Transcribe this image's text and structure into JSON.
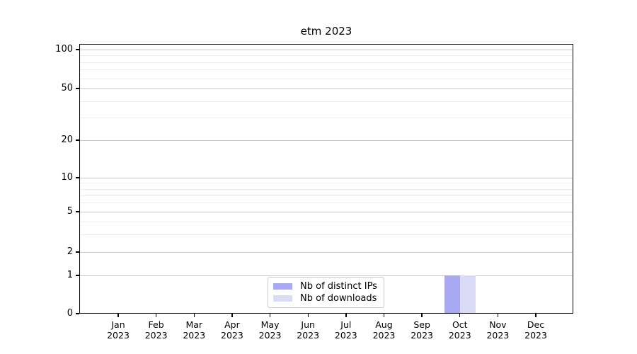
{
  "title": "etm 2023",
  "chart_data": {
    "type": "bar",
    "title": "etm 2023",
    "categories": [
      {
        "month": "Jan",
        "year": "2023"
      },
      {
        "month": "Feb",
        "year": "2023"
      },
      {
        "month": "Mar",
        "year": "2023"
      },
      {
        "month": "Apr",
        "year": "2023"
      },
      {
        "month": "May",
        "year": "2023"
      },
      {
        "month": "Jun",
        "year": "2023"
      },
      {
        "month": "Jul",
        "year": "2023"
      },
      {
        "month": "Aug",
        "year": "2023"
      },
      {
        "month": "Sep",
        "year": "2023"
      },
      {
        "month": "Oct",
        "year": "2023"
      },
      {
        "month": "Nov",
        "year": "2023"
      },
      {
        "month": "Dec",
        "year": "2023"
      }
    ],
    "series": [
      {
        "name": "Nb of distinct IPs",
        "color": "#a9a9f2",
        "values": [
          0,
          0,
          0,
          0,
          0,
          0,
          0,
          0,
          0,
          1,
          0,
          0
        ]
      },
      {
        "name": "Nb of downloads",
        "color": "#dbdbf8",
        "values": [
          0,
          0,
          0,
          0,
          0,
          0,
          0,
          0,
          0,
          1,
          0,
          0
        ]
      }
    ],
    "xlabel": "",
    "ylabel": "",
    "yscale": "symlog",
    "y_tick_labels": [
      "100",
      "50",
      "20",
      "10",
      "5",
      "2",
      "1",
      "0"
    ],
    "ylim": [
      0,
      110
    ],
    "grid": "horizontal major and minor gridlines",
    "legend": {
      "position": "inside lower-center",
      "entries": [
        "Nb of distinct IPs",
        "Nb of downloads"
      ]
    },
    "colors": {
      "bar_distinct_ips": "#a9a9f2",
      "bar_downloads": "#dbdbf8",
      "grid_major": "#c9c9c9",
      "grid_minor": "#ececec",
      "spine": "#000000",
      "background": "#ffffff"
    }
  }
}
